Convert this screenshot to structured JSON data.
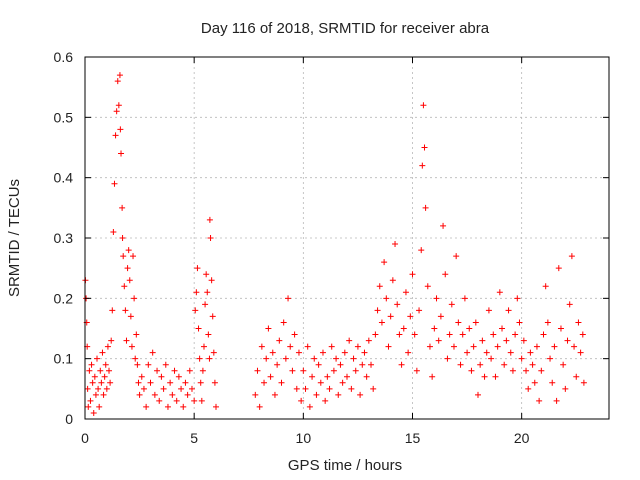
{
  "chart_data": {
    "type": "scatter",
    "title": "Day 116 of 2018, SRMTID for receiver abra",
    "xlabel": "GPS time / hours",
    "ylabel": "SRMTID / TECUs",
    "xlim": [
      0,
      24
    ],
    "ylim": [
      0,
      0.6
    ],
    "x_ticks": [
      0,
      5,
      10,
      15,
      20
    ],
    "x_tick_labels": [
      "0",
      "5",
      "10",
      "15",
      "20"
    ],
    "y_ticks": [
      0,
      0.1,
      0.2,
      0.3,
      0.4,
      0.5,
      0.6
    ],
    "y_tick_labels": [
      "0",
      "0.1",
      "0.2",
      "0.3",
      "0.4",
      "0.5",
      "0.6"
    ],
    "grid": true,
    "marker": "+",
    "color": "#ff0000",
    "series": [
      {
        "name": "SRMTID",
        "points": [
          [
            0.02,
            0.23
          ],
          [
            0.05,
            0.2
          ],
          [
            0.08,
            0.16
          ],
          [
            0.1,
            0.12
          ],
          [
            0.12,
            0.05
          ],
          [
            0.15,
            0.02
          ],
          [
            0.2,
            0.08
          ],
          [
            0.25,
            0.03
          ],
          [
            0.3,
            0.09
          ],
          [
            0.35,
            0.06
          ],
          [
            0.4,
            0.01
          ],
          [
            0.45,
            0.07
          ],
          [
            0.5,
            0.04
          ],
          [
            0.55,
            0.1
          ],
          [
            0.6,
            0.05
          ],
          [
            0.65,
            0.02
          ],
          [
            0.7,
            0.08
          ],
          [
            0.75,
            0.06
          ],
          [
            0.8,
            0.11
          ],
          [
            0.85,
            0.04
          ],
          [
            0.9,
            0.07
          ],
          [
            0.95,
            0.09
          ],
          [
            1.0,
            0.05
          ],
          [
            1.05,
            0.12
          ],
          [
            1.1,
            0.08
          ],
          [
            1.15,
            0.06
          ],
          [
            1.2,
            0.13
          ],
          [
            1.25,
            0.18
          ],
          [
            1.3,
            0.31
          ],
          [
            1.35,
            0.39
          ],
          [
            1.4,
            0.47
          ],
          [
            1.45,
            0.51
          ],
          [
            1.5,
            0.56
          ],
          [
            1.55,
            0.52
          ],
          [
            1.6,
            0.57
          ],
          [
            1.62,
            0.48
          ],
          [
            1.65,
            0.44
          ],
          [
            1.7,
            0.35
          ],
          [
            1.72,
            0.3
          ],
          [
            1.75,
            0.27
          ],
          [
            1.8,
            0.22
          ],
          [
            1.85,
            0.18
          ],
          [
            1.9,
            0.13
          ],
          [
            1.95,
            0.25
          ],
          [
            2.0,
            0.28
          ],
          [
            2.05,
            0.23
          ],
          [
            2.1,
            0.17
          ],
          [
            2.15,
            0.12
          ],
          [
            2.2,
            0.27
          ],
          [
            2.25,
            0.2
          ],
          [
            2.3,
            0.1
          ],
          [
            2.35,
            0.14
          ],
          [
            2.4,
            0.09
          ],
          [
            2.45,
            0.06
          ],
          [
            2.5,
            0.04
          ],
          [
            2.6,
            0.07
          ],
          [
            2.7,
            0.05
          ],
          [
            2.8,
            0.02
          ],
          [
            2.9,
            0.09
          ],
          [
            3.0,
            0.06
          ],
          [
            3.1,
            0.11
          ],
          [
            3.2,
            0.04
          ],
          [
            3.3,
            0.08
          ],
          [
            3.4,
            0.03
          ],
          [
            3.5,
            0.07
          ],
          [
            3.6,
            0.05
          ],
          [
            3.7,
            0.09
          ],
          [
            3.8,
            0.02
          ],
          [
            3.9,
            0.06
          ],
          [
            4.0,
            0.04
          ],
          [
            4.1,
            0.08
          ],
          [
            4.2,
            0.03
          ],
          [
            4.3,
            0.07
          ],
          [
            4.4,
            0.05
          ],
          [
            4.5,
            0.02
          ],
          [
            4.6,
            0.06
          ],
          [
            4.7,
            0.04
          ],
          [
            4.8,
            0.08
          ],
          [
            4.9,
            0.05
          ],
          [
            5.0,
            0.03
          ],
          [
            5.05,
            0.18
          ],
          [
            5.1,
            0.21
          ],
          [
            5.15,
            0.25
          ],
          [
            5.2,
            0.15
          ],
          [
            5.25,
            0.1
          ],
          [
            5.3,
            0.06
          ],
          [
            5.35,
            0.03
          ],
          [
            5.4,
            0.08
          ],
          [
            5.45,
            0.12
          ],
          [
            5.5,
            0.19
          ],
          [
            5.55,
            0.24
          ],
          [
            5.6,
            0.21
          ],
          [
            5.65,
            0.14
          ],
          [
            5.7,
            0.1
          ],
          [
            5.72,
            0.33
          ],
          [
            5.75,
            0.3
          ],
          [
            5.8,
            0.23
          ],
          [
            5.85,
            0.17
          ],
          [
            5.9,
            0.11
          ],
          [
            5.95,
            0.06
          ],
          [
            6.0,
            0.02
          ],
          [
            7.8,
            0.04
          ],
          [
            7.9,
            0.08
          ],
          [
            8.0,
            0.02
          ],
          [
            8.1,
            0.12
          ],
          [
            8.2,
            0.06
          ],
          [
            8.3,
            0.1
          ],
          [
            8.4,
            0.15
          ],
          [
            8.5,
            0.07
          ],
          [
            8.6,
            0.11
          ],
          [
            8.7,
            0.04
          ],
          [
            8.8,
            0.09
          ],
          [
            8.9,
            0.13
          ],
          [
            9.0,
            0.06
          ],
          [
            9.1,
            0.16
          ],
          [
            9.2,
            0.1
          ],
          [
            9.3,
            0.2
          ],
          [
            9.4,
            0.12
          ],
          [
            9.5,
            0.08
          ],
          [
            9.6,
            0.14
          ],
          [
            9.7,
            0.05
          ],
          [
            9.8,
            0.11
          ],
          [
            9.9,
            0.03
          ],
          [
            10.0,
            0.08
          ],
          [
            10.1,
            0.05
          ],
          [
            10.2,
            0.12
          ],
          [
            10.3,
            0.02
          ],
          [
            10.4,
            0.07
          ],
          [
            10.5,
            0.1
          ],
          [
            10.6,
            0.04
          ],
          [
            10.7,
            0.09
          ],
          [
            10.8,
            0.06
          ],
          [
            10.9,
            0.11
          ],
          [
            11.0,
            0.03
          ],
          [
            11.1,
            0.07
          ],
          [
            11.2,
            0.05
          ],
          [
            11.3,
            0.12
          ],
          [
            11.4,
            0.08
          ],
          [
            11.5,
            0.1
          ],
          [
            11.6,
            0.04
          ],
          [
            11.7,
            0.09
          ],
          [
            11.8,
            0.06
          ],
          [
            11.9,
            0.11
          ],
          [
            12.0,
            0.07
          ],
          [
            12.1,
            0.13
          ],
          [
            12.2,
            0.05
          ],
          [
            12.3,
            0.1
          ],
          [
            12.4,
            0.08
          ],
          [
            12.5,
            0.12
          ],
          [
            12.6,
            0.04
          ],
          [
            12.7,
            0.09
          ],
          [
            12.8,
            0.11
          ],
          [
            12.9,
            0.07
          ],
          [
            13.0,
            0.13
          ],
          [
            13.1,
            0.09
          ],
          [
            13.2,
            0.05
          ],
          [
            13.3,
            0.14
          ],
          [
            13.4,
            0.18
          ],
          [
            13.5,
            0.22
          ],
          [
            13.6,
            0.16
          ],
          [
            13.7,
            0.26
          ],
          [
            13.8,
            0.2
          ],
          [
            13.9,
            0.12
          ],
          [
            14.0,
            0.17
          ],
          [
            14.1,
            0.23
          ],
          [
            14.2,
            0.29
          ],
          [
            14.3,
            0.19
          ],
          [
            14.4,
            0.14
          ],
          [
            14.5,
            0.09
          ],
          [
            14.6,
            0.15
          ],
          [
            14.7,
            0.21
          ],
          [
            14.8,
            0.11
          ],
          [
            14.9,
            0.17
          ],
          [
            15.0,
            0.24
          ],
          [
            15.1,
            0.14
          ],
          [
            15.2,
            0.08
          ],
          [
            15.3,
            0.18
          ],
          [
            15.4,
            0.28
          ],
          [
            15.45,
            0.42
          ],
          [
            15.5,
            0.52
          ],
          [
            15.55,
            0.45
          ],
          [
            15.6,
            0.35
          ],
          [
            15.7,
            0.22
          ],
          [
            15.8,
            0.12
          ],
          [
            15.9,
            0.07
          ],
          [
            16.0,
            0.15
          ],
          [
            16.1,
            0.2
          ],
          [
            16.2,
            0.13
          ],
          [
            16.3,
            0.17
          ],
          [
            16.4,
            0.32
          ],
          [
            16.5,
            0.24
          ],
          [
            16.6,
            0.1
          ],
          [
            16.7,
            0.14
          ],
          [
            16.8,
            0.19
          ],
          [
            16.9,
            0.12
          ],
          [
            17.0,
            0.27
          ],
          [
            17.1,
            0.16
          ],
          [
            17.2,
            0.09
          ],
          [
            17.3,
            0.14
          ],
          [
            17.4,
            0.2
          ],
          [
            17.5,
            0.11
          ],
          [
            17.6,
            0.15
          ],
          [
            17.7,
            0.08
          ],
          [
            17.8,
            0.12
          ],
          [
            17.9,
            0.16
          ],
          [
            18.0,
            0.04
          ],
          [
            18.1,
            0.09
          ],
          [
            18.2,
            0.13
          ],
          [
            18.3,
            0.07
          ],
          [
            18.4,
            0.11
          ],
          [
            18.5,
            0.18
          ],
          [
            18.6,
            0.1
          ],
          [
            18.7,
            0.14
          ],
          [
            18.8,
            0.07
          ],
          [
            18.9,
            0.12
          ],
          [
            19.0,
            0.21
          ],
          [
            19.1,
            0.15
          ],
          [
            19.2,
            0.09
          ],
          [
            19.3,
            0.13
          ],
          [
            19.4,
            0.18
          ],
          [
            19.5,
            0.11
          ],
          [
            19.6,
            0.08
          ],
          [
            19.7,
            0.14
          ],
          [
            19.8,
            0.2
          ],
          [
            19.9,
            0.16
          ],
          [
            20.0,
            0.1
          ],
          [
            20.1,
            0.13
          ],
          [
            20.2,
            0.08
          ],
          [
            20.3,
            0.05
          ],
          [
            20.4,
            0.11
          ],
          [
            20.5,
            0.09
          ],
          [
            20.6,
            0.06
          ],
          [
            20.7,
            0.12
          ],
          [
            20.8,
            0.03
          ],
          [
            20.9,
            0.08
          ],
          [
            21.0,
            0.14
          ],
          [
            21.1,
            0.22
          ],
          [
            21.2,
            0.16
          ],
          [
            21.3,
            0.1
          ],
          [
            21.4,
            0.06
          ],
          [
            21.5,
            0.12
          ],
          [
            21.6,
            0.03
          ],
          [
            21.7,
            0.25
          ],
          [
            21.8,
            0.15
          ],
          [
            21.9,
            0.09
          ],
          [
            22.0,
            0.05
          ],
          [
            22.1,
            0.13
          ],
          [
            22.2,
            0.19
          ],
          [
            22.3,
            0.27
          ],
          [
            22.4,
            0.12
          ],
          [
            22.5,
            0.07
          ],
          [
            22.6,
            0.16
          ],
          [
            22.7,
            0.11
          ],
          [
            22.8,
            0.14
          ],
          [
            22.85,
            0.06
          ]
        ]
      }
    ]
  }
}
